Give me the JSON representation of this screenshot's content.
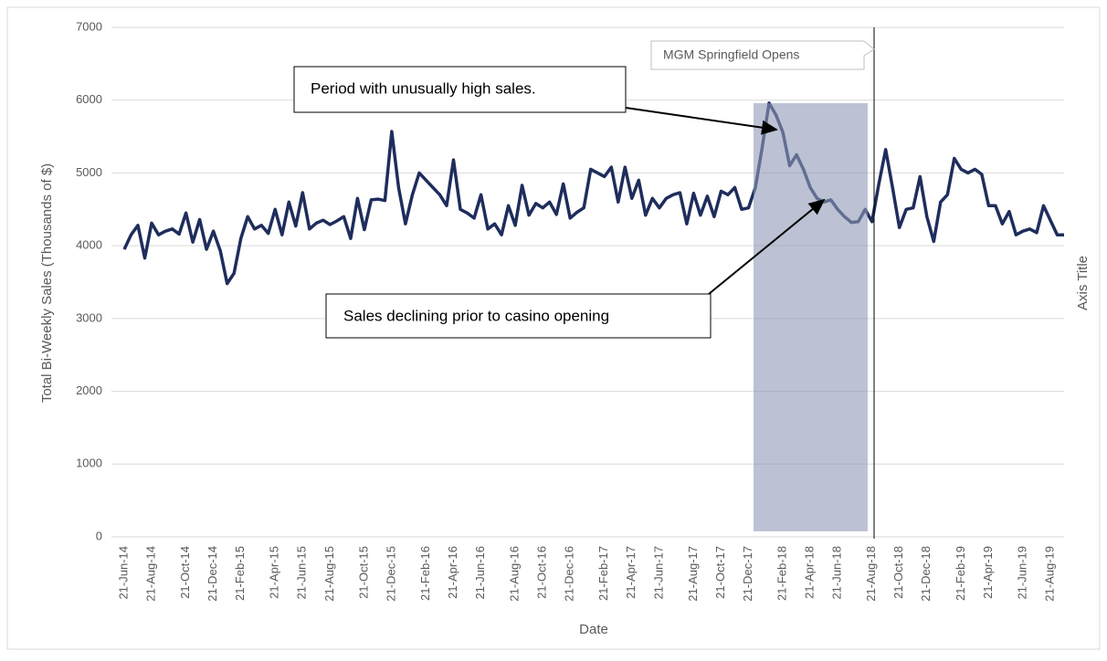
{
  "chart_data": {
    "type": "line",
    "y_axis_title": "Total Bi-Weekly Sales (Thousands of $)",
    "x_axis_title": "Date",
    "y2_axis_title": "Axis Title",
    "annotations": [
      "Period with unusually high sales.",
      "Sales declining prior to casino opening",
      "MGM Springfield Opens"
    ],
    "color": "#1f2d5c",
    "grid": true,
    "ylim": [
      0,
      7000
    ],
    "yticks": [
      0,
      1000,
      2000,
      3000,
      4000,
      5000,
      6000,
      7000
    ],
    "categories": [
      "21-Jun-14",
      null,
      null,
      null,
      "21-Aug-14",
      null,
      null,
      null,
      null,
      "21-Oct-14",
      null,
      null,
      null,
      "21-Dec-14",
      null,
      null,
      null,
      "21-Feb-15",
      null,
      null,
      null,
      null,
      "21-Apr-15",
      null,
      null,
      null,
      "21-Jun-15",
      null,
      null,
      null,
      "21-Aug-15",
      null,
      null,
      null,
      null,
      "21-Oct-15",
      null,
      null,
      null,
      "21-Dec-15",
      null,
      null,
      null,
      null,
      "21-Feb-16",
      null,
      null,
      null,
      "21-Apr-16",
      null,
      null,
      null,
      "21-Jun-16",
      null,
      null,
      null,
      null,
      "21-Aug-16",
      null,
      null,
      null,
      "21-Oct-16",
      null,
      null,
      null,
      "21-Dec-16",
      null,
      null,
      null,
      null,
      "21-Feb-17",
      null,
      null,
      null,
      "21-Apr-17",
      null,
      null,
      null,
      "21-Jun-17",
      null,
      null,
      null,
      null,
      "21-Aug-17",
      null,
      null,
      null,
      "21-Oct-17",
      null,
      null,
      null,
      "21-Dec-17",
      null,
      null,
      null,
      null,
      "21-Feb-18",
      null,
      null,
      null,
      "21-Apr-18",
      null,
      null,
      null,
      "21-Jun-18",
      null,
      null,
      null,
      null,
      "21-Aug-18",
      null,
      null,
      null,
      "21-Oct-18",
      null,
      null,
      null,
      "21-Dec-18",
      null,
      null,
      null,
      null,
      "21-Feb-19",
      null,
      null,
      null,
      "21-Apr-19",
      null,
      null,
      null,
      null,
      "21-Jun-19",
      null,
      null,
      null,
      "21-Aug-19",
      null,
      null
    ],
    "values": [
      3950,
      4150,
      4280,
      3830,
      4310,
      4150,
      4200,
      4230,
      4160,
      4450,
      4050,
      4360,
      3950,
      4200,
      3930,
      3480,
      3620,
      4100,
      4400,
      4230,
      4280,
      4170,
      4500,
      4150,
      4600,
      4270,
      4730,
      4230,
      4310,
      4350,
      4290,
      4340,
      4400,
      4100,
      4650,
      4220,
      4630,
      4640,
      4620,
      5570,
      4800,
      4300,
      4700,
      5000,
      4900,
      4800,
      4700,
      4550,
      5180,
      4500,
      4450,
      4380,
      4700,
      4230,
      4300,
      4150,
      4550,
      4280,
      4830,
      4420,
      4580,
      4520,
      4600,
      4430,
      4850,
      4380,
      4460,
      4520,
      5050,
      5000,
      4950,
      5080,
      4600,
      5080,
      4650,
      4900,
      4420,
      4650,
      4520,
      4650,
      4700,
      4730,
      4300,
      4720,
      4420,
      4680,
      4400,
      4750,
      4700,
      4800,
      4500,
      4520,
      4800,
      5350,
      5960,
      5800,
      5560,
      5100,
      5250,
      5050,
      4800,
      4650,
      4600,
      4630,
      4500,
      4400,
      4320,
      4330,
      4500,
      4330,
      4850,
      5320,
      4800,
      4250,
      4500,
      4520,
      4950,
      4400,
      4060,
      4600,
      4700,
      5200,
      5050,
      5000,
      5050,
      4980,
      4550,
      4550,
      4300,
      4470,
      4150,
      4200,
      4230,
      4180,
      4550,
      4350,
      4150,
      4150
    ]
  }
}
